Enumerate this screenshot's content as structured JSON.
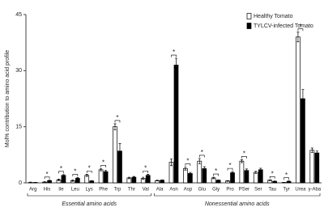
{
  "chart_data": {
    "type": "bar",
    "y_label": "Mol% contribution to amino acid profile",
    "categories": [
      "Arg",
      "His",
      "Ile",
      "Leu",
      "Lys",
      "Phe",
      "Trp",
      "Thr",
      "Val",
      "Ala",
      "Asn",
      "Asp",
      "Glu",
      "Gly",
      "Pro",
      "PSer",
      "Ser",
      "Tau",
      "Tyr",
      "Urea",
      "γ-Aba"
    ],
    "series": [
      {
        "name": "Healthy Tomato",
        "color": "#ffffff",
        "values": [
          0.1,
          0.2,
          0.8,
          0.6,
          2.0,
          3.5,
          15.0,
          1.3,
          1.2,
          0.6,
          5.5,
          3.8,
          5.8,
          1.3,
          0.5,
          5.8,
          2.8,
          0.7,
          0.1,
          39.0,
          8.7
        ],
        "errors": [
          0.1,
          0.1,
          0.2,
          0.2,
          0.3,
          0.3,
          0.8,
          0.2,
          0.3,
          0.1,
          0.9,
          0.4,
          0.7,
          0.2,
          0.1,
          0.4,
          0.3,
          0.1,
          0.05,
          1.3,
          0.6
        ]
      },
      {
        "name": "TYLCV-infected Tomato",
        "color": "#000000",
        "values": [
          0.1,
          0.6,
          2.0,
          1.2,
          0.5,
          3.0,
          8.5,
          1.5,
          2.0,
          0.7,
          31.5,
          2.5,
          3.8,
          0.7,
          2.7,
          3.3,
          3.5,
          0.4,
          0.4,
          22.5,
          8.0
        ],
        "errors": [
          0.05,
          0.1,
          0.2,
          0.2,
          0.1,
          0.3,
          2.0,
          0.2,
          0.3,
          0.1,
          1.8,
          0.3,
          0.5,
          0.1,
          0.3,
          0.4,
          0.4,
          0.1,
          0.1,
          2.5,
          0.5
        ]
      }
    ],
    "significance": [
      null,
      "*",
      "*",
      "*",
      "*",
      "*",
      "*",
      null,
      "*",
      null,
      "*",
      "*",
      "*",
      "*",
      "*",
      "*",
      null,
      "*",
      "*",
      "*",
      null
    ],
    "groups": [
      "Essential amino acids",
      "Nonessential amino acids"
    ],
    "ylim": [
      0,
      45
    ],
    "yticks": [
      0,
      15,
      30,
      45
    ],
    "grid": false,
    "legend": "top-right"
  }
}
